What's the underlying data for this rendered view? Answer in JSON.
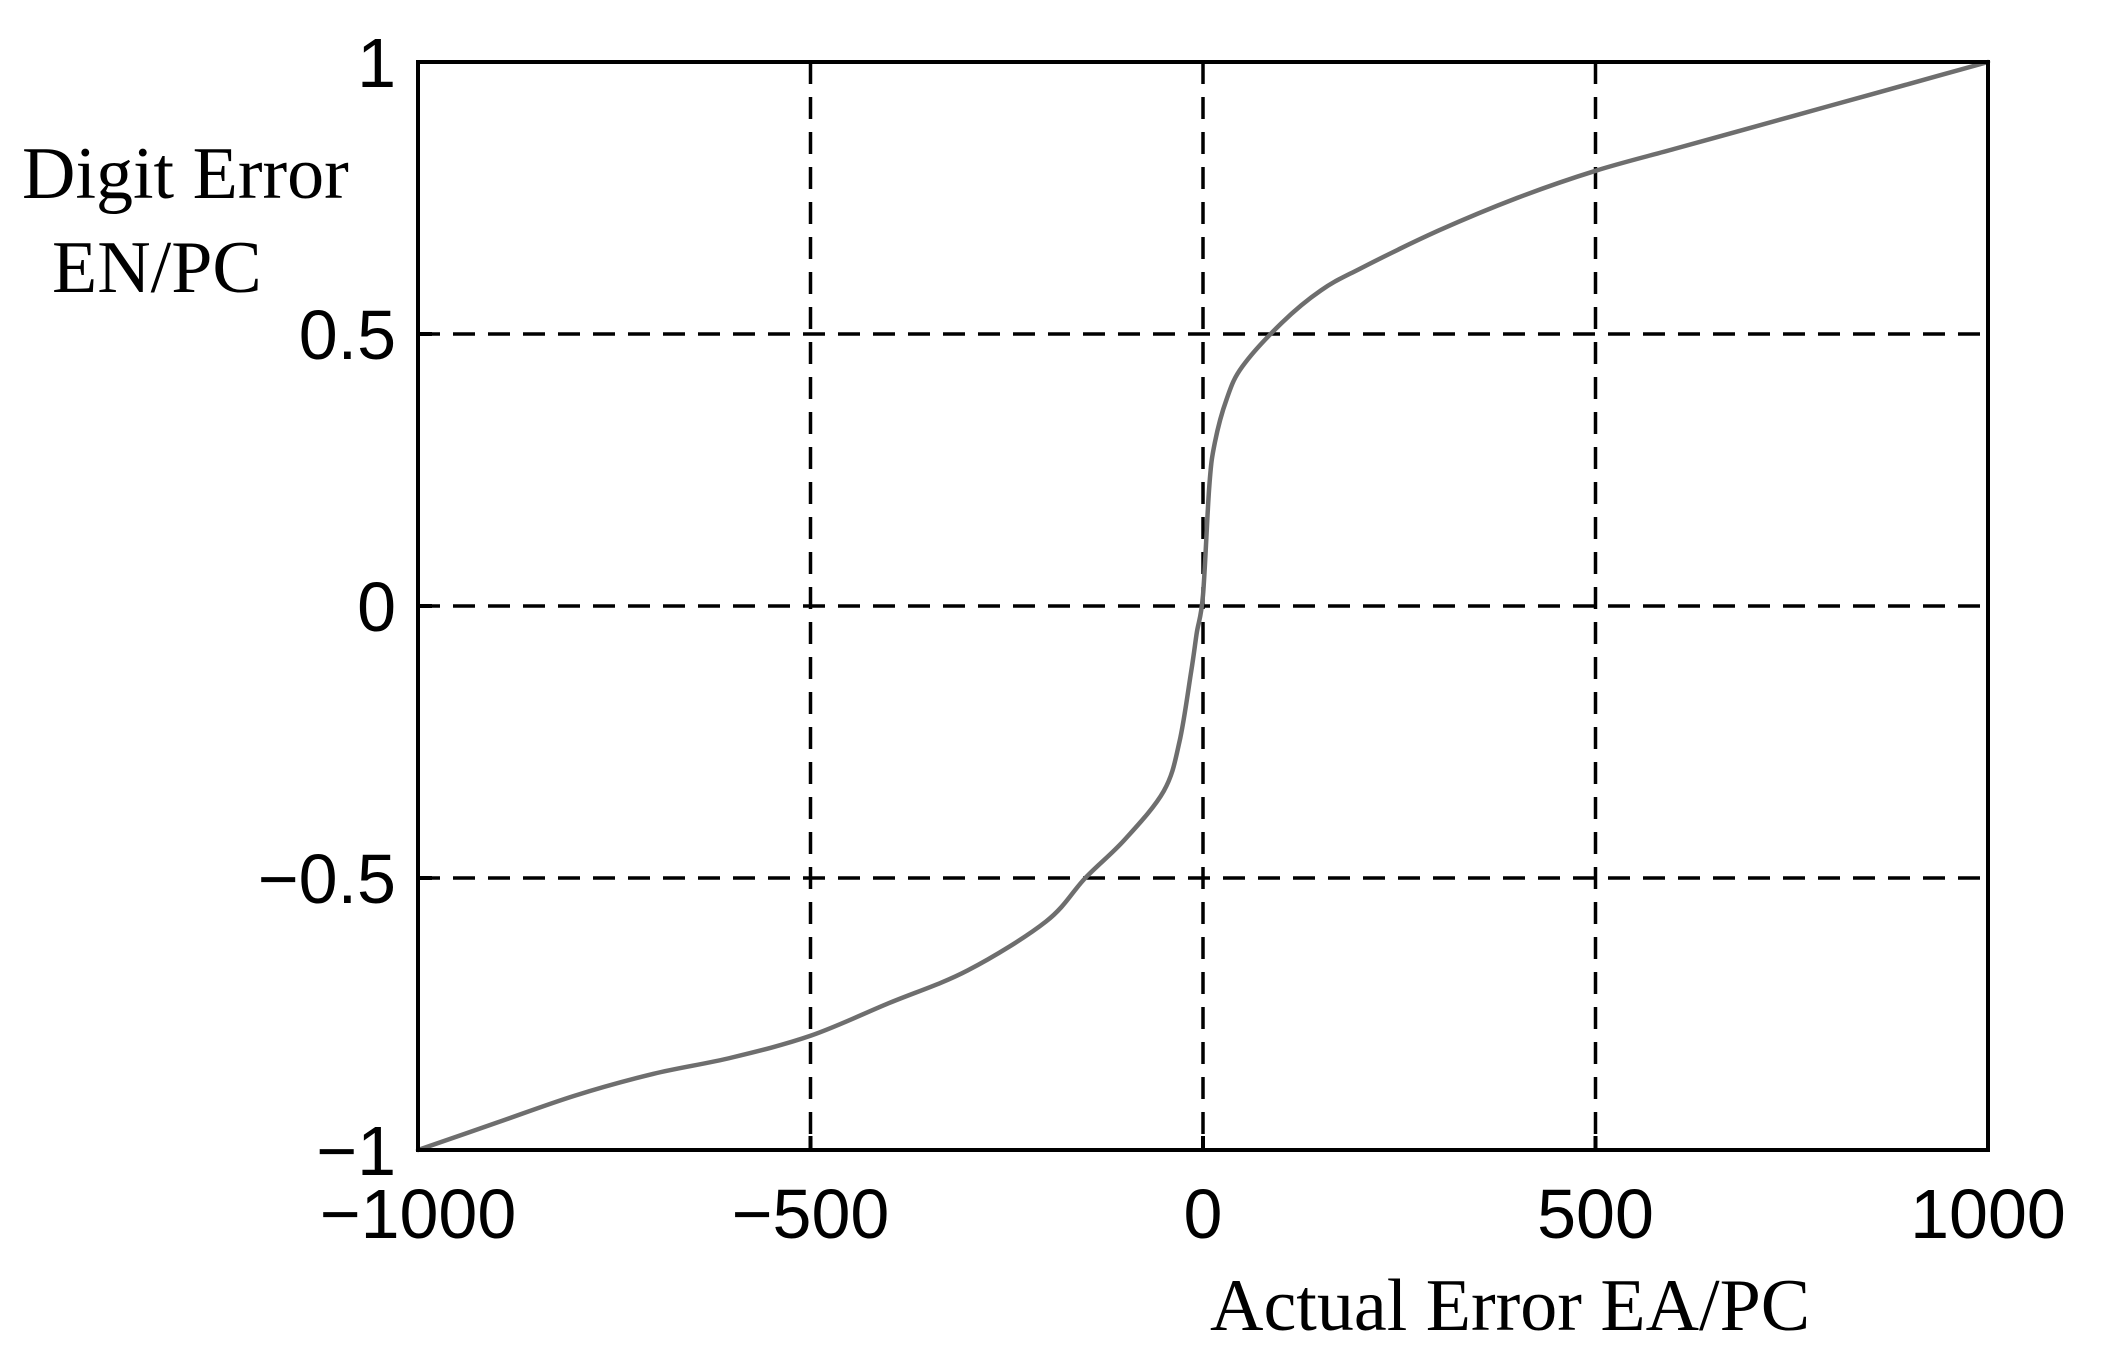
{
  "chart_data": {
    "type": "line",
    "title": "",
    "xlabel": "Actual Error  EA/PC",
    "ylabel_lines": [
      "Digit Error",
      "EN/PC"
    ],
    "xlim": [
      -1000,
      1000
    ],
    "ylim": [
      -1,
      1
    ],
    "x_ticks": [
      -1000,
      -500,
      0,
      500,
      1000
    ],
    "x_tick_labels": [
      "−1000",
      "−500",
      "0",
      "500",
      "1000"
    ],
    "y_ticks": [
      -1,
      -0.5,
      0,
      0.5,
      1
    ],
    "y_tick_labels": [
      "−1",
      "−0.5",
      "0",
      "0.5",
      "1"
    ],
    "grid": true,
    "grid_style": "dashed",
    "line_color": "#6e6e6e",
    "series": [
      {
        "x": [
          -1000,
          -900,
          -800,
          -700,
          -600,
          -500,
          -400,
          -300,
          -200,
          -150,
          -100,
          -50,
          -30,
          -15,
          -8,
          0,
          8,
          15,
          30,
          50,
          100,
          150,
          200,
          300,
          400,
          500,
          600,
          700,
          800,
          900,
          1000
        ],
        "y": [
          -1,
          -0.95,
          -0.9,
          -0.86,
          -0.83,
          -0.79,
          -0.73,
          -0.67,
          -0.58,
          -0.5,
          -0.43,
          -0.34,
          -0.25,
          -0.12,
          -0.05,
          0.02,
          0.22,
          0.3,
          0.38,
          0.44,
          0.52,
          0.58,
          0.62,
          0.69,
          0.75,
          0.8,
          0.84,
          0.88,
          0.92,
          0.96,
          1
        ]
      }
    ]
  }
}
